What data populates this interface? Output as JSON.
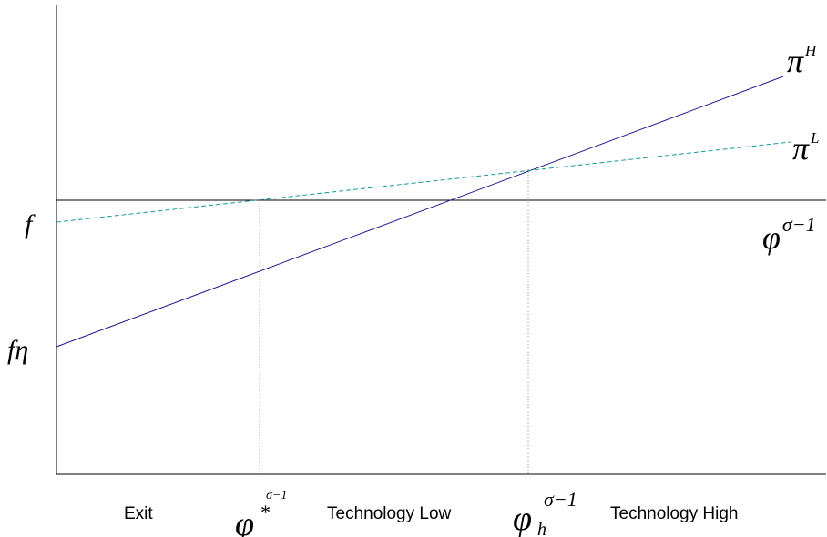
{
  "diagram": {
    "curves": [
      {
        "id": "pi-H",
        "label": "π",
        "superscript": "H",
        "color": "#1f1a8c",
        "style": "solid"
      },
      {
        "id": "pi-L",
        "label": "π",
        "superscript": "L",
        "color": "#1a9a9a",
        "style": "dashed"
      }
    ],
    "x_axis_label": {
      "base": "φ",
      "superscript": "σ−1"
    },
    "intercepts": {
      "f": "f",
      "f_eta": "fη"
    },
    "thresholds": {
      "phi_star": {
        "base": "φ",
        "star": "*",
        "superscript": "σ−1"
      },
      "phi_h": {
        "base": "φ",
        "subscript": "h",
        "superscript": "σ−1"
      }
    },
    "regions": {
      "exit": "Exit",
      "tech_low": "Technology Low",
      "tech_high": "Technology High"
    },
    "colors": {
      "axis": "#000000",
      "guide": "#9a9a9a"
    }
  }
}
